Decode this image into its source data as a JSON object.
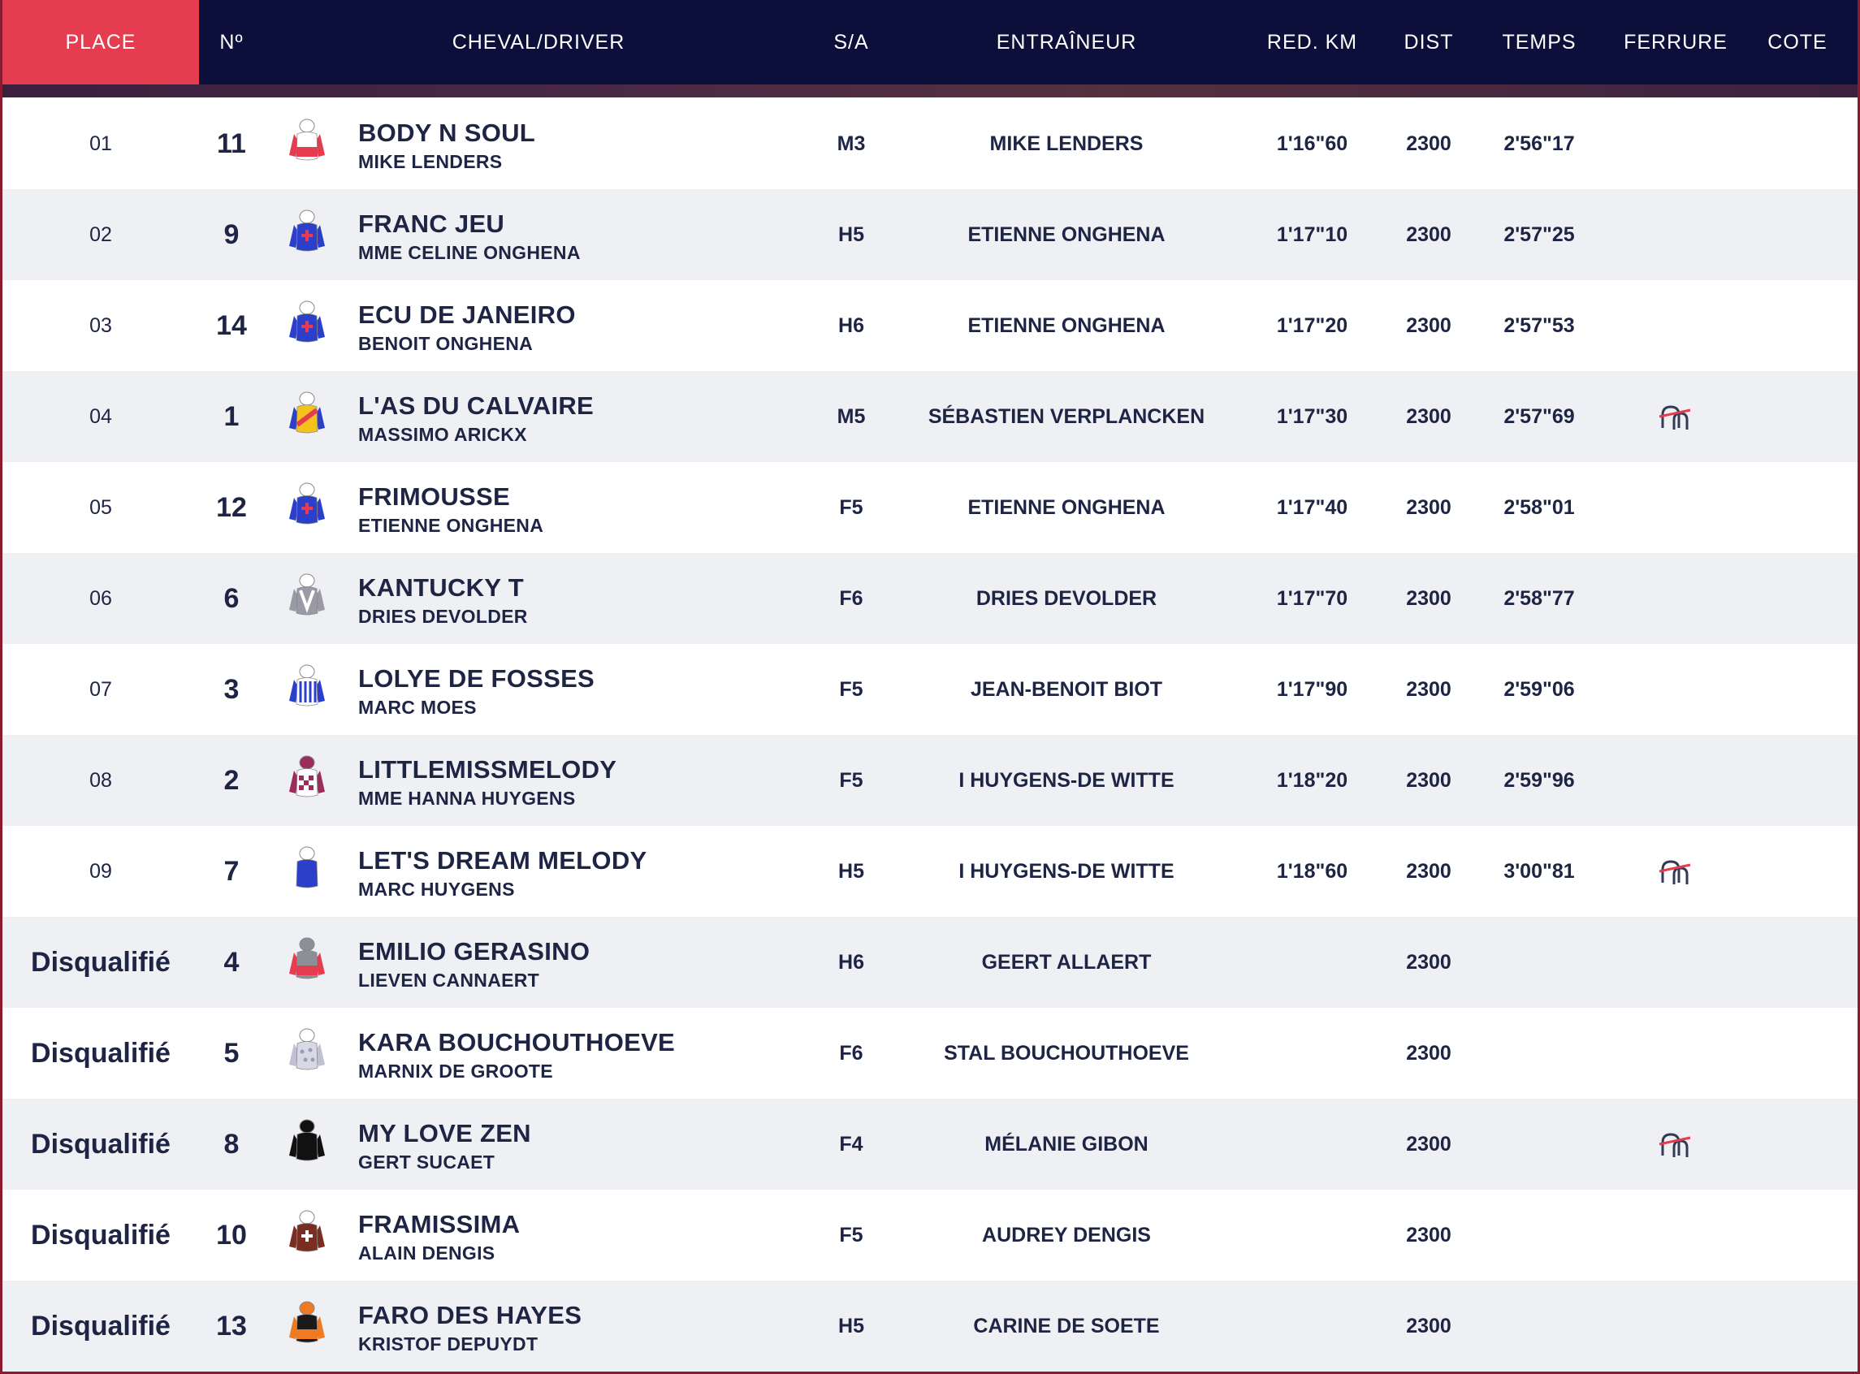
{
  "header": {
    "place": "PLACE",
    "num": "Nº",
    "horse_driver": "CHEVAL/DRIVER",
    "sa": "S/A",
    "trainer": "ENTRAÎNEUR",
    "red_km": "RED. KM",
    "dist": "DIST",
    "temps": "TEMPS",
    "ferrure": "FERRURE",
    "cote": "COTE"
  },
  "colors": {
    "header_bg": "#0c0f3a",
    "active_header": "#e53c4f",
    "row_alt": "#eff0f4",
    "text": "#1e2444"
  },
  "rows": [
    {
      "place": "01",
      "num": "11",
      "horse": "BODY N SOUL",
      "driver": "MIKE LENDERS",
      "sa": "M3",
      "trainer": "MIKE LENDERS",
      "red_km": "1'16\"60",
      "dist": "2300",
      "time": "2'56\"17",
      "ferrure": "",
      "silk": "red-white"
    },
    {
      "place": "02",
      "num": "9",
      "horse": "FRANC JEU",
      "driver": "MME CELINE ONGHENA",
      "sa": "H5",
      "trainer": "ETIENNE ONGHENA",
      "red_km": "1'17\"10",
      "dist": "2300",
      "time": "2'57\"25",
      "ferrure": "",
      "silk": "blue-red-cross"
    },
    {
      "place": "03",
      "num": "14",
      "horse": "ECU DE JANEIRO",
      "driver": "BENOIT ONGHENA",
      "sa": "H6",
      "trainer": "ETIENNE ONGHENA",
      "red_km": "1'17\"20",
      "dist": "2300",
      "time": "2'57\"53",
      "ferrure": "",
      "silk": "blue-red-cross"
    },
    {
      "place": "04",
      "num": "1",
      "horse": "L'AS DU CALVAIRE",
      "driver": "MASSIMO ARICKX",
      "sa": "M5",
      "trainer": "SÉBASTIEN VERPLANCKEN",
      "red_km": "1'17\"30",
      "dist": "2300",
      "time": "2'57\"69",
      "ferrure": "shoe-icon",
      "silk": "yellow-red-blue"
    },
    {
      "place": "05",
      "num": "12",
      "horse": "FRIMOUSSE",
      "driver": "ETIENNE ONGHENA",
      "sa": "F5",
      "trainer": "ETIENNE ONGHENA",
      "red_km": "1'17\"40",
      "dist": "2300",
      "time": "2'58\"01",
      "ferrure": "",
      "silk": "blue-red-cross"
    },
    {
      "place": "06",
      "num": "6",
      "horse": "KANTUCKY T",
      "driver": "DRIES DEVOLDER",
      "sa": "F6",
      "trainer": "DRIES DEVOLDER",
      "red_km": "1'17\"70",
      "dist": "2300",
      "time": "2'58\"77",
      "ferrure": "",
      "silk": "grey-white-v"
    },
    {
      "place": "07",
      "num": "3",
      "horse": "LOLYE DE FOSSES",
      "driver": "MARC MOES",
      "sa": "F5",
      "trainer": "JEAN-BENOIT BIOT",
      "red_km": "1'17\"90",
      "dist": "2300",
      "time": "2'59\"06",
      "ferrure": "",
      "silk": "blue-white-stripes"
    },
    {
      "place": "08",
      "num": "2",
      "horse": "LITTLEMISSMELODY",
      "driver": "MME HANNA HUYGENS",
      "sa": "F5",
      "trainer": "I HUYGENS-DE WITTE",
      "red_km": "1'18\"20",
      "dist": "2300",
      "time": "2'59\"96",
      "ferrure": "",
      "silk": "purple-check"
    },
    {
      "place": "09",
      "num": "7",
      "horse": "LET'S DREAM MELODY",
      "driver": "MARC HUYGENS",
      "sa": "H5",
      "trainer": "I HUYGENS-DE WITTE",
      "red_km": "1'18\"60",
      "dist": "2300",
      "time": "3'00\"81",
      "ferrure": "shoe-icon",
      "silk": "white-blue"
    },
    {
      "place": "Disqualifié",
      "num": "4",
      "horse": "EMILIO GERASINO",
      "driver": "LIEVEN CANNAERT",
      "sa": "H6",
      "trainer": "GEERT ALLAERT",
      "red_km": "",
      "dist": "2300",
      "time": "",
      "ferrure": "",
      "silk": "grey-red"
    },
    {
      "place": "Disqualifié",
      "num": "5",
      "horse": "KARA BOUCHOUTHOEVE",
      "driver": "MARNIX DE GROOTE",
      "sa": "F6",
      "trainer": "STAL BOUCHOUTHOEVE",
      "red_km": "",
      "dist": "2300",
      "time": "",
      "ferrure": "",
      "silk": "lavender-dots"
    },
    {
      "place": "Disqualifié",
      "num": "8",
      "horse": "MY LOVE ZEN",
      "driver": "GERT SUCAET",
      "sa": "F4",
      "trainer": "MÉLANIE GIBON",
      "red_km": "",
      "dist": "2300",
      "time": "",
      "ferrure": "shoe-icon",
      "silk": "black-red"
    },
    {
      "place": "Disqualifié",
      "num": "10",
      "horse": "FRAMISSIMA",
      "driver": "ALAIN DENGIS",
      "sa": "F5",
      "trainer": "AUDREY DENGIS",
      "red_km": "",
      "dist": "2300",
      "time": "",
      "ferrure": "",
      "silk": "brown-white-cross"
    },
    {
      "place": "Disqualifié",
      "num": "13",
      "horse": "FARO DES HAYES",
      "driver": "KRISTOF DEPUYDT",
      "sa": "H5",
      "trainer": "CARINE DE SOETE",
      "red_km": "",
      "dist": "2300",
      "time": "",
      "ferrure": "",
      "silk": "orange-black"
    }
  ]
}
